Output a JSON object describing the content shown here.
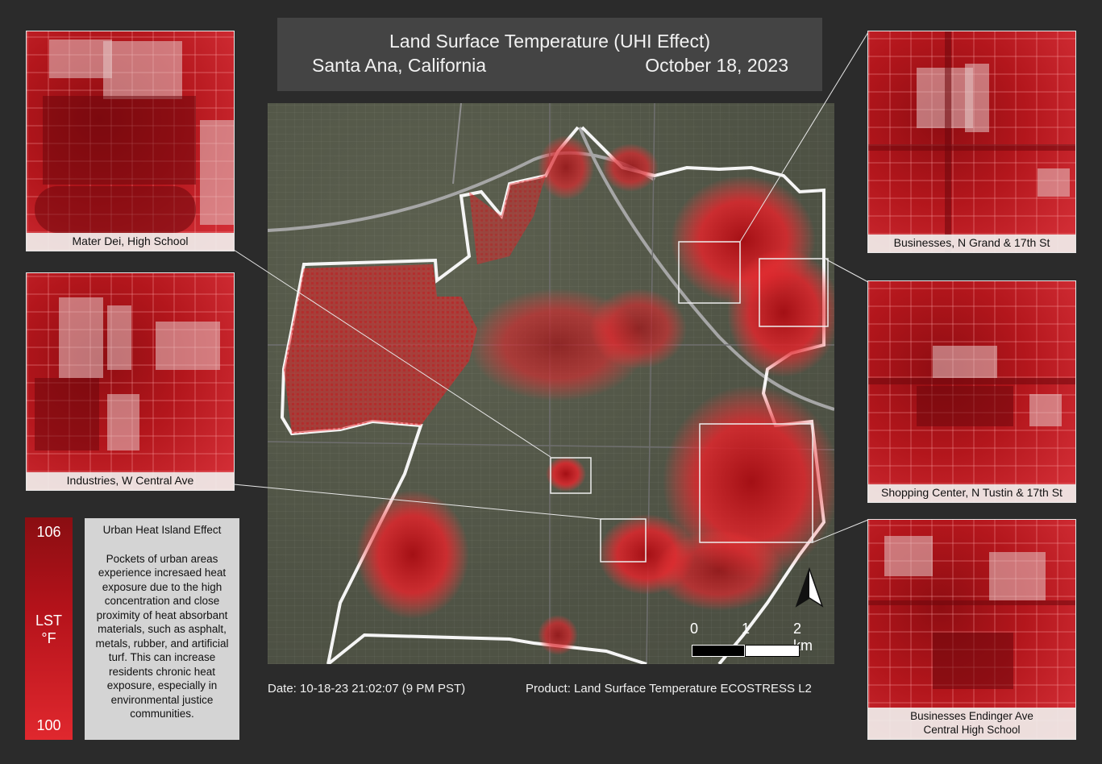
{
  "title": {
    "line1": "Land Surface Temperature (UHI Effect)",
    "city": "Santa Ana, California",
    "date": "October 18, 2023"
  },
  "insets": {
    "mater_dei": "Mater Dei, High School",
    "industries": "Industries, W Central Ave",
    "grand": "Businesses, N Grand & 17th St",
    "tustin": "Shopping Center, N Tustin & 17th St",
    "endinger_line1": "Businesses Endinger Ave",
    "endinger_line2": "Central High School"
  },
  "legend": {
    "max": "106",
    "label_line1": "LST",
    "label_line2": "°F",
    "min": "100",
    "colors": {
      "high": "#8a0e12",
      "low": "#e0282e"
    }
  },
  "info": {
    "title": "Urban Heat Island Effect",
    "body": "Pockets of urban areas experience incresaed heat exposure due to the high concentration and close proximity of heat absorbant materials, such as asphalt, metals, rubber, and artificial turf. This can increase residents chronic heat exposure, especially in environmental justice communities."
  },
  "scale": {
    "labels": [
      "0",
      "1",
      "2 km"
    ]
  },
  "footer": {
    "date": "Date:  10-18-23 21:02:07 (9 PM PST)",
    "product": "Product: Land Surface Temperature ECOSTRESS L2"
  },
  "icons": {
    "north": "north-arrow-icon"
  }
}
